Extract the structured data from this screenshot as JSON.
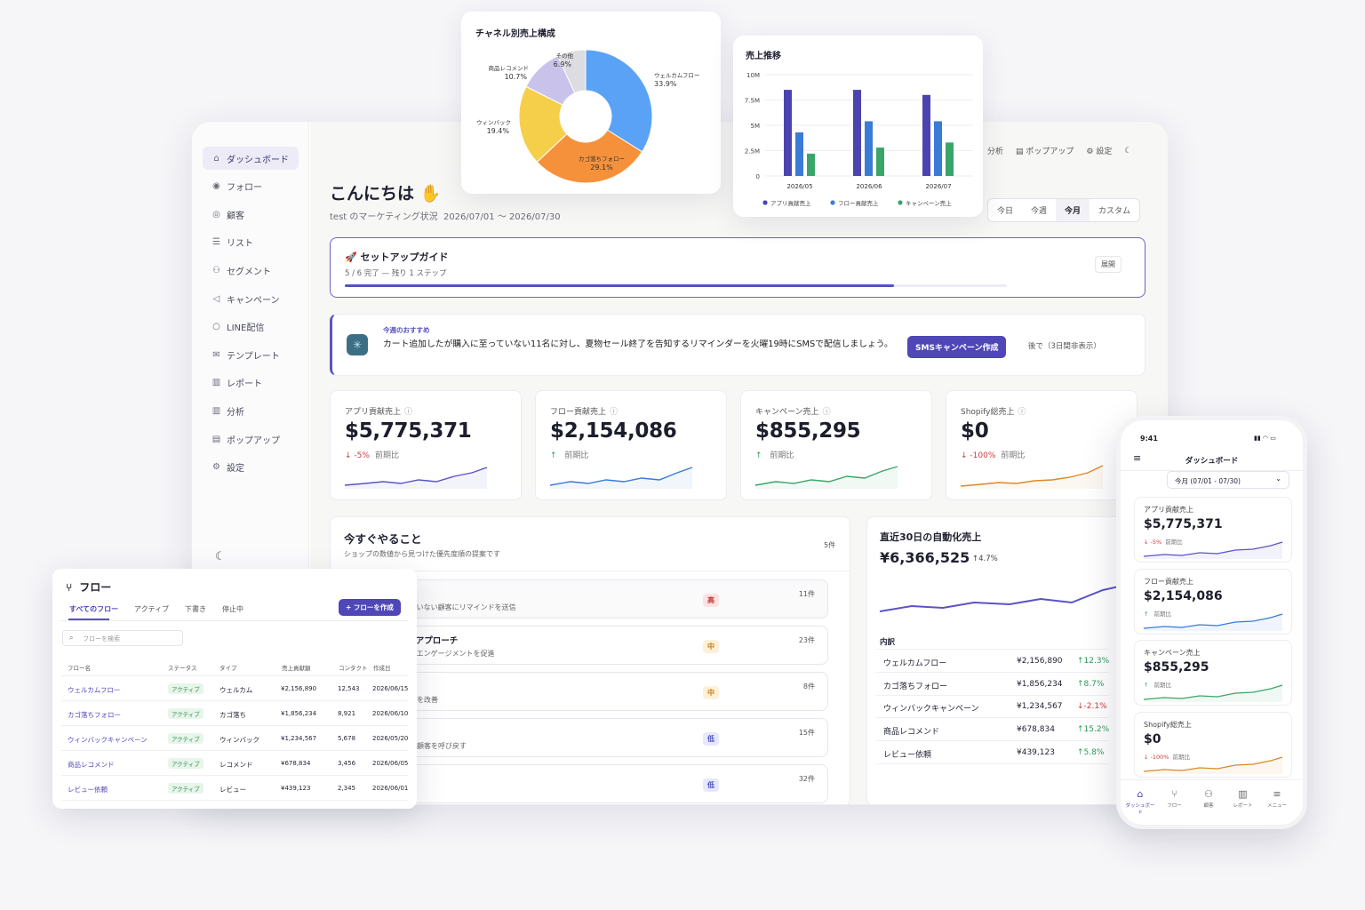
{
  "sidebar": {
    "items": [
      {
        "label": "ダッシュボード",
        "icon": "home-icon"
      },
      {
        "label": "フォロー",
        "icon": "user-circle-icon"
      },
      {
        "label": "顧客",
        "icon": "eye-icon"
      },
      {
        "label": "リスト",
        "icon": "list-icon"
      },
      {
        "label": "セグメント",
        "icon": "users-icon"
      },
      {
        "label": "キャンペーン",
        "icon": "megaphone-icon"
      },
      {
        "label": "LINE配信",
        "icon": "chat-bubble-icon"
      },
      {
        "label": "テンプレート",
        "icon": "mail-icon"
      },
      {
        "label": "レポート",
        "icon": "bar-chart-icon"
      },
      {
        "label": "分析",
        "icon": "bar-chart-icon"
      },
      {
        "label": "ポップアップ",
        "icon": "popup-icon"
      },
      {
        "label": "設定",
        "icon": "gear-icon"
      }
    ]
  },
  "topbar": {
    "analysis": "分析",
    "popup": "ポップアップ",
    "settings": "設定"
  },
  "header": {
    "greeting": "こんにちは",
    "subtitle": "test のマーケティング状況",
    "date_range": "2026/07/01 〜 2026/07/30",
    "ranges": [
      "今日",
      "今週",
      "今月",
      "カスタム"
    ],
    "active_range": "今月"
  },
  "setup": {
    "title": "セットアップガイド",
    "progress_text": "5 / 6 完了 — 残り 1 ステップ",
    "expand": "展開",
    "progress": 0.83
  },
  "recommend": {
    "tag": "今週のおすすめ",
    "text": "カート追加したが購入に至っていない11名に対し、夏物セール終了を告知するリマインダーを火曜19時にSMSで配信しましょう。",
    "cta": "SMSキャンペーン作成",
    "later": "後で（3日間非表示）"
  },
  "kpis": [
    {
      "label": "アプリ貢献売上",
      "value": "$5,775,371",
      "delta": "-5%",
      "dir": "down",
      "compare": "前期比",
      "color": "#5a53c6"
    },
    {
      "label": "フロー貢献売上",
      "value": "$2,154,086",
      "delta": "",
      "dir": "up",
      "compare": "前期比",
      "color": "#3a7bd5"
    },
    {
      "label": "キャンペーン売上",
      "value": "$855,295",
      "delta": "",
      "dir": "up",
      "compare": "前期比",
      "color": "#3aa56a"
    },
    {
      "label": "Shopify総売上",
      "value": "$0",
      "delta": "-100%",
      "dir": "down",
      "compare": "前期比",
      "color": "#d98a2b"
    }
  ],
  "todo": {
    "title": "今すぐやること",
    "subtitle": "ショップの数値から見つけた優先度順の提案です",
    "count": "5件",
    "items": [
      {
        "title": "フォローアップ",
        "desc": "ト追加したが購入に至っていない顧客にリマインドを送信",
        "priority": "高",
        "level": "high",
        "count": "11件"
      },
      {
        "title": "ゲージメント顧客へのアプローチ",
        "desc": "アクションのない顧客に再エンゲージメントを促進",
        "priority": "中",
        "level": "mid",
        "count": "23件"
      },
      {
        "title": "レコメンド最適化",
        "desc": "履歴に基づいたレコメンドを改善",
        "priority": "中",
        "level": "mid",
        "count": "8件"
      },
      {
        "title": "ンバックキャンペーン",
        "desc": "購入したが最近購入のない顧客を呼び戻す",
        "priority": "低",
        "level": "low",
        "count": "15件"
      },
      {
        "title": "ュー依頼の最適化",
        "desc": "",
        "priority": "低",
        "level": "low",
        "count": "32件"
      }
    ]
  },
  "auto": {
    "title": "直近30日の自動化売上",
    "value": "¥6,366,525",
    "delta": "↑4.7%",
    "breakdown_title": "内訳",
    "rows": [
      {
        "name": "ウェルカムフロー",
        "value": "¥2,156,890",
        "delta": "↑12.3%",
        "dir": "up"
      },
      {
        "name": "カゴ落ちフォロー",
        "value": "¥1,856,234",
        "delta": "↑8.7%",
        "dir": "up"
      },
      {
        "name": "ウィンバックキャンペーン",
        "value": "¥1,234,567",
        "delta": "↓-2.1%",
        "dir": "down"
      },
      {
        "name": "商品レコメンド",
        "value": "¥678,834",
        "delta": "↑15.2%",
        "dir": "up"
      },
      {
        "name": "レビュー依頼",
        "value": "¥439,123",
        "delta": "↑5.8%",
        "dir": "up"
      }
    ]
  },
  "flow": {
    "title": "フロー",
    "tabs": [
      "すべてのフロー",
      "アクティブ",
      "下書き",
      "停止中"
    ],
    "create": "+ フローを作成",
    "search_placeholder": "フローを検索",
    "headers": [
      "フロー名",
      "ステータス",
      "タイプ",
      "売上貢献額",
      "コンタクト",
      "作成日"
    ],
    "rows": [
      {
        "name": "ウェルカムフロー",
        "status": "アクティブ",
        "type": "ウェルカム",
        "revenue": "¥2,156,890",
        "contacts": "12,543",
        "date": "2026/06/15"
      },
      {
        "name": "カゴ落ちフォロー",
        "status": "アクティブ",
        "type": "カゴ落ち",
        "revenue": "¥1,856,234",
        "contacts": "8,921",
        "date": "2026/06/10"
      },
      {
        "name": "ウィンバックキャンペーン",
        "status": "アクティブ",
        "type": "ウィンバック",
        "revenue": "¥1,234,567",
        "contacts": "5,678",
        "date": "2026/05/20"
      },
      {
        "name": "商品レコメンド",
        "status": "アクティブ",
        "type": "レコメンド",
        "revenue": "¥678,834",
        "contacts": "3,456",
        "date": "2026/06/05"
      },
      {
        "name": "レビュー依頼",
        "status": "アクティブ",
        "type": "レビュー",
        "revenue": "¥439,123",
        "contacts": "2,345",
        "date": "2026/06/01"
      }
    ]
  },
  "chart_data": [
    {
      "type": "pie",
      "title": "チャネル別売上構成",
      "categories": [
        "ウェルカムフロー",
        "カゴ落ちフォロー",
        "ウィンバック",
        "商品レコメンド",
        "その他"
      ],
      "labels": [
        "33.9%",
        "29.1%",
        "19.4%",
        "10.7%",
        "6.9%"
      ],
      "values": [
        33.9,
        29.1,
        19.4,
        10.7,
        6.9
      ],
      "colors": [
        "#5aa2f5",
        "#f5913a",
        "#f6cf4a",
        "#c9c3ec",
        "#dcdce2"
      ]
    },
    {
      "type": "bar",
      "title": "売上推移",
      "categories": [
        "2026/05",
        "2026/06",
        "2026/07"
      ],
      "yticks": [
        "0",
        "2.5M",
        "5M",
        "7.5M",
        "10M"
      ],
      "ylim": [
        0,
        10
      ],
      "legend_position": "bottom",
      "series": [
        {
          "name": "アプリ貢献売上",
          "values": [
            8.5,
            8.5,
            8.0
          ],
          "color": "#4b44b0"
        },
        {
          "name": "フロー貢献売上",
          "values": [
            4.3,
            5.4,
            5.4
          ],
          "color": "#3a7bd5"
        },
        {
          "name": "キャンペーン売上",
          "values": [
            2.2,
            2.8,
            3.3
          ],
          "color": "#3aa56a"
        }
      ]
    }
  ],
  "mobile": {
    "time": "9:41",
    "title": "ダッシュボード",
    "range": "今月 (07/01 - 07/30)",
    "nav": [
      "ダッシュボード",
      "フロー",
      "顧客",
      "レポート",
      "メニュー"
    ]
  }
}
